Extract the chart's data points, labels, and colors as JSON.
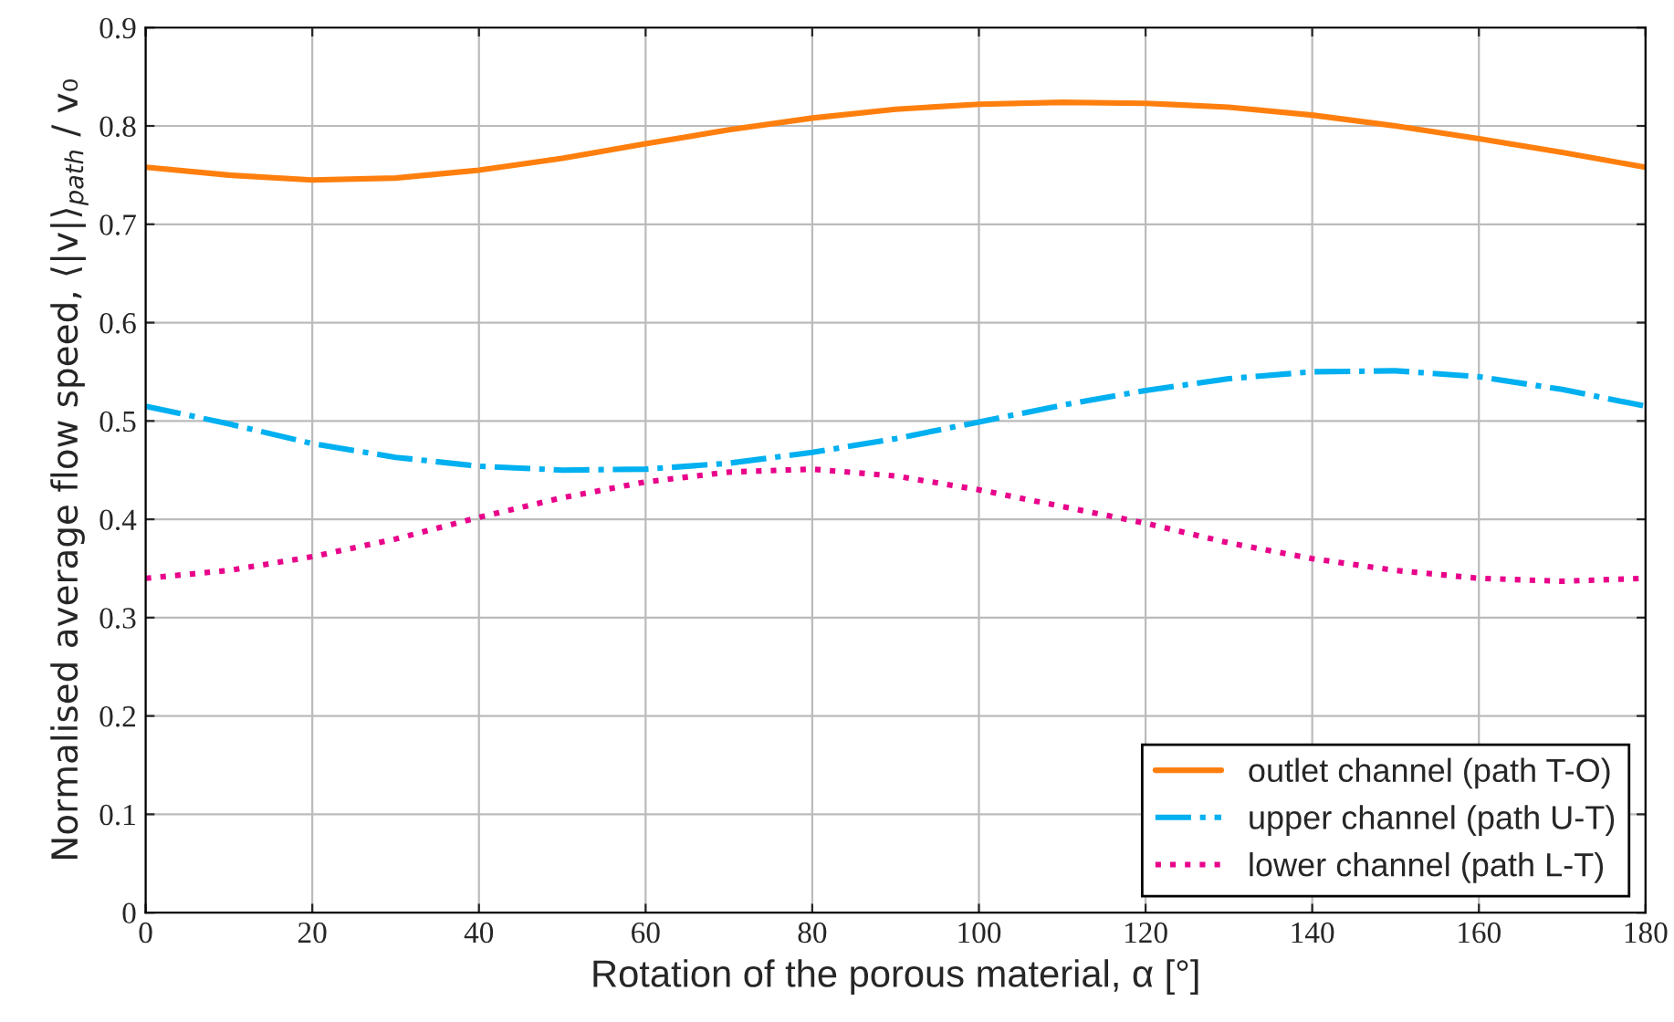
{
  "chart_data": {
    "type": "line",
    "xlabel": "Rotation of the porous material, α [°]",
    "ylabel": "Normalised average flow speed, ⟨|v|⟩$_{path}$ / v₀",
    "x": [
      0,
      10,
      20,
      30,
      40,
      50,
      60,
      70,
      80,
      90,
      100,
      110,
      120,
      130,
      140,
      150,
      160,
      170,
      180
    ],
    "series": [
      {
        "name": "outlet channel (path T-O)",
        "color": "#ff7f0e",
        "line_style": "solid",
        "values": [
          0.758,
          0.75,
          0.745,
          0.747,
          0.755,
          0.767,
          0.782,
          0.796,
          0.808,
          0.817,
          0.822,
          0.824,
          0.823,
          0.819,
          0.811,
          0.8,
          0.787,
          0.773,
          0.758
        ]
      },
      {
        "name": "upper channel (path U-T)",
        "color": "#00b0f0",
        "line_style": "dashdot",
        "values": [
          0.515,
          0.497,
          0.477,
          0.463,
          0.454,
          0.45,
          0.451,
          0.457,
          0.468,
          0.482,
          0.499,
          0.516,
          0.531,
          0.543,
          0.55,
          0.551,
          0.545,
          0.532,
          0.515
        ]
      },
      {
        "name": "lower channel (path L-T)",
        "color": "#e8008a",
        "line_style": "dotted",
        "values": [
          0.34,
          0.348,
          0.362,
          0.38,
          0.402,
          0.422,
          0.438,
          0.448,
          0.451,
          0.444,
          0.43,
          0.413,
          0.396,
          0.376,
          0.36,
          0.348,
          0.34,
          0.337,
          0.34
        ]
      }
    ],
    "xlim": [
      0,
      180
    ],
    "xticks": [
      0,
      20,
      40,
      60,
      80,
      100,
      120,
      140,
      160,
      180
    ],
    "ylim": [
      0,
      0.9
    ],
    "yticks": [
      0,
      0.1,
      0.2,
      0.3,
      0.4,
      0.5,
      0.6,
      0.7,
      0.8,
      0.9
    ],
    "grid": true,
    "legend": "bottom right",
    "marker": "none"
  }
}
